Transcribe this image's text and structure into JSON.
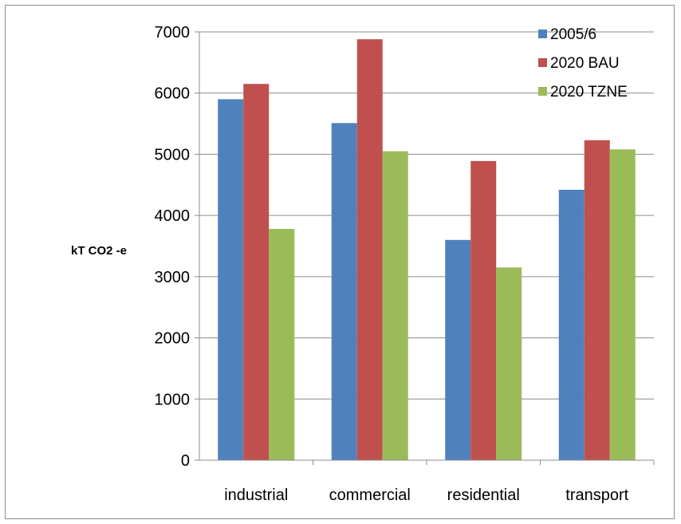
{
  "chart_data": {
    "type": "bar",
    "categories": [
      "industrial",
      "commercial",
      "residential",
      "transport"
    ],
    "series": [
      {
        "name": "2005/6",
        "color": "#4F81BD",
        "values": [
          5900,
          5510,
          3600,
          4420
        ]
      },
      {
        "name": "2020 BAU",
        "color": "#C0504D",
        "values": [
          6150,
          6880,
          4890,
          5230
        ]
      },
      {
        "name": "2020 TZNE",
        "color": "#9BBB59",
        "values": [
          3780,
          5050,
          3150,
          5080
        ]
      }
    ],
    "ylabel": "kT CO2 -e",
    "xlabel": "",
    "title": "",
    "ylim": [
      0,
      7000
    ],
    "yticks": [
      0,
      1000,
      2000,
      3000,
      4000,
      5000,
      6000,
      7000
    ],
    "grid": true,
    "legend_position": "top-right"
  }
}
